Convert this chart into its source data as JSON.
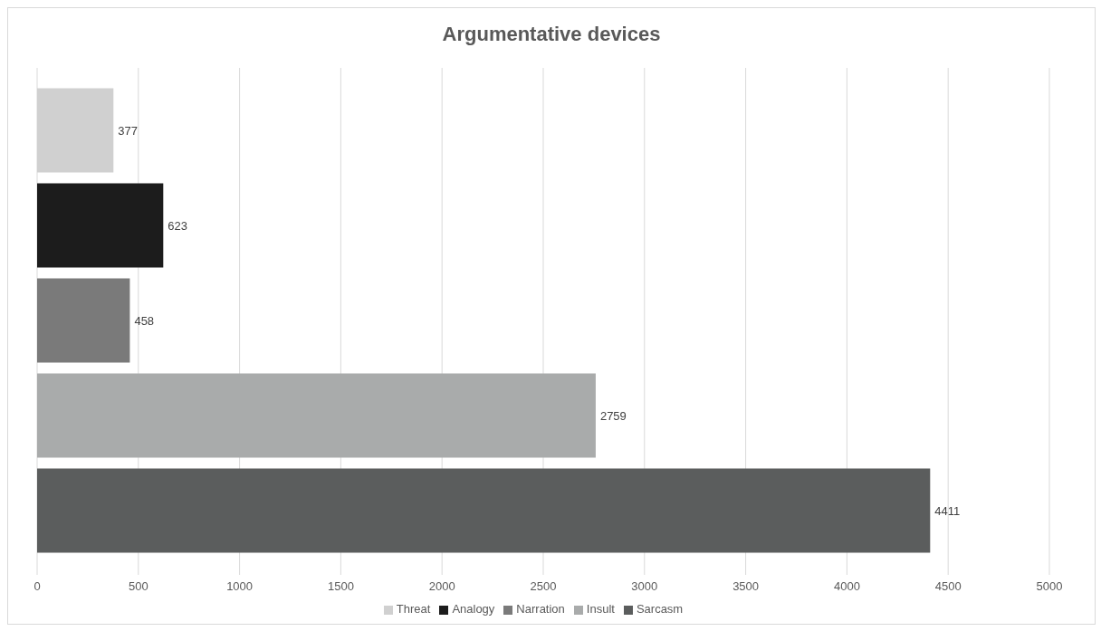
{
  "chart_data": {
    "type": "bar",
    "orientation": "horizontal",
    "title": "Argumentative devices",
    "categories": [
      null
    ],
    "series": [
      {
        "name": "Threat",
        "color": "#d0d0d0",
        "values": [
          377
        ]
      },
      {
        "name": "Analogy",
        "color": "#1c1c1c",
        "values": [
          623
        ]
      },
      {
        "name": "Narration",
        "color": "#7a7a7a",
        "values": [
          458
        ]
      },
      {
        "name": "Insult",
        "color": "#a9abab",
        "values": [
          2759
        ]
      },
      {
        "name": "Sarcasm",
        "color": "#5b5d5d",
        "values": [
          4411
        ]
      }
    ],
    "xlim": [
      0,
      5000
    ],
    "xticks": [
      0,
      500,
      1000,
      1500,
      2000,
      2500,
      3000,
      3500,
      4000,
      4500,
      5000
    ],
    "grid": "x",
    "legend": "bottom",
    "data_labels": true
  }
}
